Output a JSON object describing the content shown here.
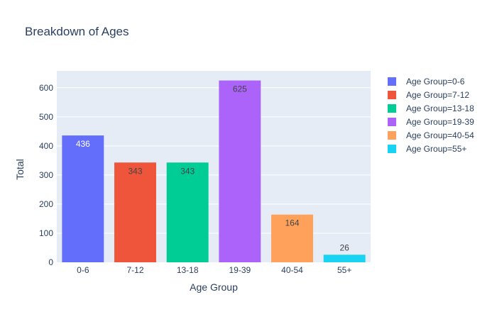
{
  "chart_data": {
    "type": "bar",
    "title": "Breakdown of Ages",
    "xlabel": "Age Group",
    "ylabel": "Total",
    "categories": [
      "0-6",
      "7-12",
      "13-18",
      "19-39",
      "40-54",
      "55+"
    ],
    "values": [
      436,
      343,
      343,
      625,
      164,
      26
    ],
    "series": [
      {
        "name": "Age Group=0-6",
        "color": "#636efa",
        "label_color": "#ffffff"
      },
      {
        "name": "Age Group=7-12",
        "color": "#ef553b",
        "label_color": "#444444"
      },
      {
        "name": "Age Group=13-18",
        "color": "#00cc96",
        "label_color": "#444444"
      },
      {
        "name": "Age Group=19-39",
        "color": "#ab63fa",
        "label_color": "#444444"
      },
      {
        "name": "Age Group=40-54",
        "color": "#ffa15a",
        "label_color": "#444444"
      },
      {
        "name": "Age Group=55+",
        "color": "#19d3f3",
        "label_color": "#444444"
      }
    ],
    "ylim": [
      0,
      658
    ],
    "yticks": [
      0,
      100,
      200,
      300,
      400,
      500,
      600
    ],
    "grid": true,
    "legend_position": "right",
    "plot_background": "#e5ecf6"
  }
}
